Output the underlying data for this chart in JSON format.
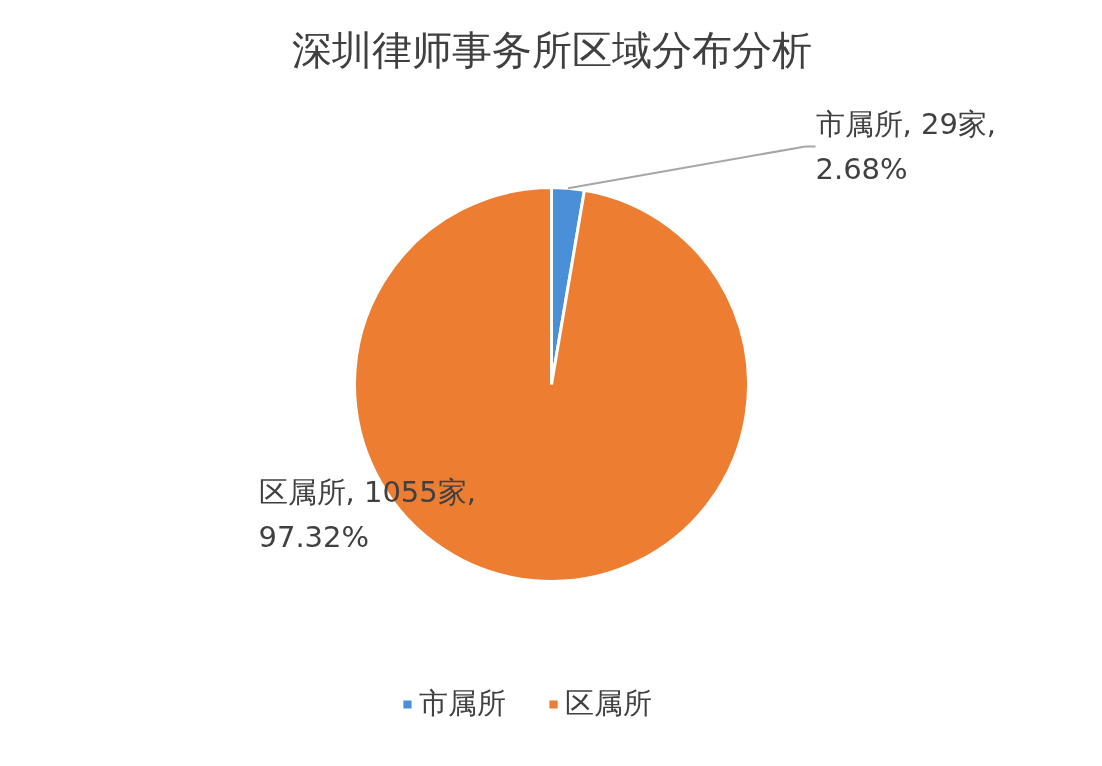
{
  "chart_data": {
    "type": "pie",
    "title": "深圳律师事务所区域分布分析",
    "categories": [
      "市属所",
      "区属所"
    ],
    "values": [
      29,
      1055
    ],
    "colors": [
      "#4a90d9",
      "#ed7d31"
    ],
    "value_labels": [
      "市属所, 29家, 2.68%",
      "区属所, 1055家, 97.32%"
    ],
    "legend": "bottom"
  }
}
